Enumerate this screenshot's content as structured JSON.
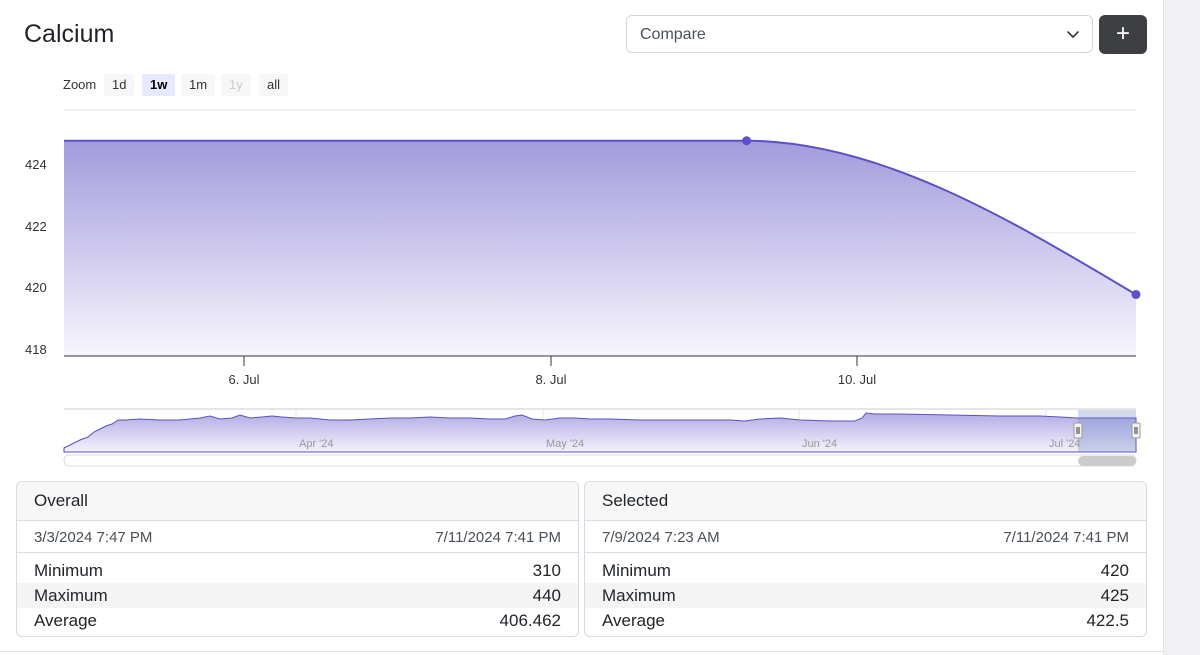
{
  "title": "Calcium",
  "compare": {
    "value": "Compare"
  },
  "add_label": "+",
  "zoom": {
    "label": "Zoom",
    "buttons": [
      {
        "label": "1d",
        "state": "normal"
      },
      {
        "label": "1w",
        "state": "active"
      },
      {
        "label": "1m",
        "state": "normal"
      },
      {
        "label": "1y",
        "state": "disabled"
      },
      {
        "label": "all",
        "state": "normal"
      }
    ]
  },
  "colors": {
    "series": "#5b50c8",
    "fill_top": "#a39bdc",
    "fill_bottom": "#f7f6fd",
    "button_dark": "#3d3f42"
  },
  "chart_data": {
    "type": "area",
    "y_ticks": [
      "424",
      "422",
      "420",
      "418"
    ],
    "ylim": [
      418,
      426
    ],
    "x_ticks": [
      "6. Jul",
      "8. Jul",
      "10. Jul"
    ],
    "series": [
      {
        "x": [
          "7/4/2024 9:40 PM",
          "7/9/2024 7:23 AM",
          "7/11/2024 7:41 PM"
        ],
        "values": [
          425,
          425,
          420
        ]
      }
    ],
    "grid": true,
    "navigator": {
      "labels": [
        "Apr '24",
        "May '24",
        "Jun '24",
        "Jul '24"
      ]
    }
  },
  "overall": {
    "title": "Overall",
    "start": "3/3/2024 7:47 PM",
    "end": "7/11/2024 7:41 PM",
    "rows": [
      {
        "label": "Minimum",
        "value": "310"
      },
      {
        "label": "Maximum",
        "value": "440"
      },
      {
        "label": "Average",
        "value": "406.462"
      }
    ]
  },
  "selected": {
    "title": "Selected",
    "start": "7/9/2024 7:23 AM",
    "end": "7/11/2024 7:41 PM",
    "rows": [
      {
        "label": "Minimum",
        "value": "420"
      },
      {
        "label": "Maximum",
        "value": "425"
      },
      {
        "label": "Average",
        "value": "422.5"
      }
    ]
  }
}
